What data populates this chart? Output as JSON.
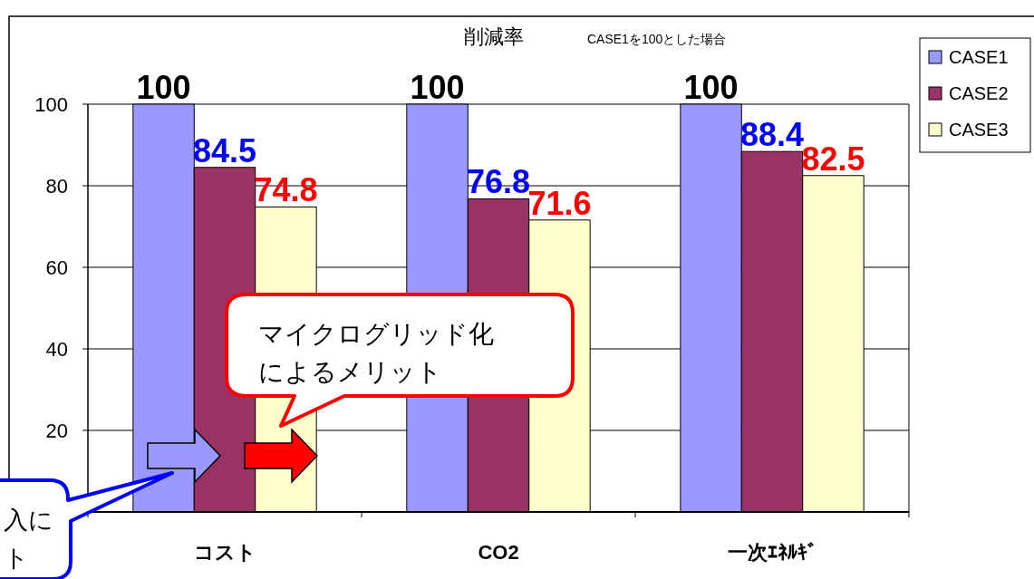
{
  "chart_data": {
    "type": "bar",
    "title": "削減率",
    "subtitle": "CASE1を100とした場合",
    "categories": [
      "コスト",
      "CO2",
      "一次ｴﾈﾙｷﾞ"
    ],
    "series": [
      {
        "name": "CASE1",
        "color": "#9999ff",
        "values": [
          100,
          100,
          100
        ]
      },
      {
        "name": "CASE2",
        "color": "#993366",
        "values": [
          84.5,
          76.8,
          88.4
        ]
      },
      {
        "name": "CASE3",
        "color": "#ffffcc",
        "values": [
          74.8,
          71.6,
          82.5
        ]
      }
    ],
    "ylim": [
      0,
      100
    ],
    "yticks": [
      20,
      40,
      60,
      80,
      100
    ],
    "grid": "y",
    "legend": "right",
    "data_labels": true,
    "annotations": [
      "マイクログリッド化によるメリット",
      "入にト"
    ]
  }
}
